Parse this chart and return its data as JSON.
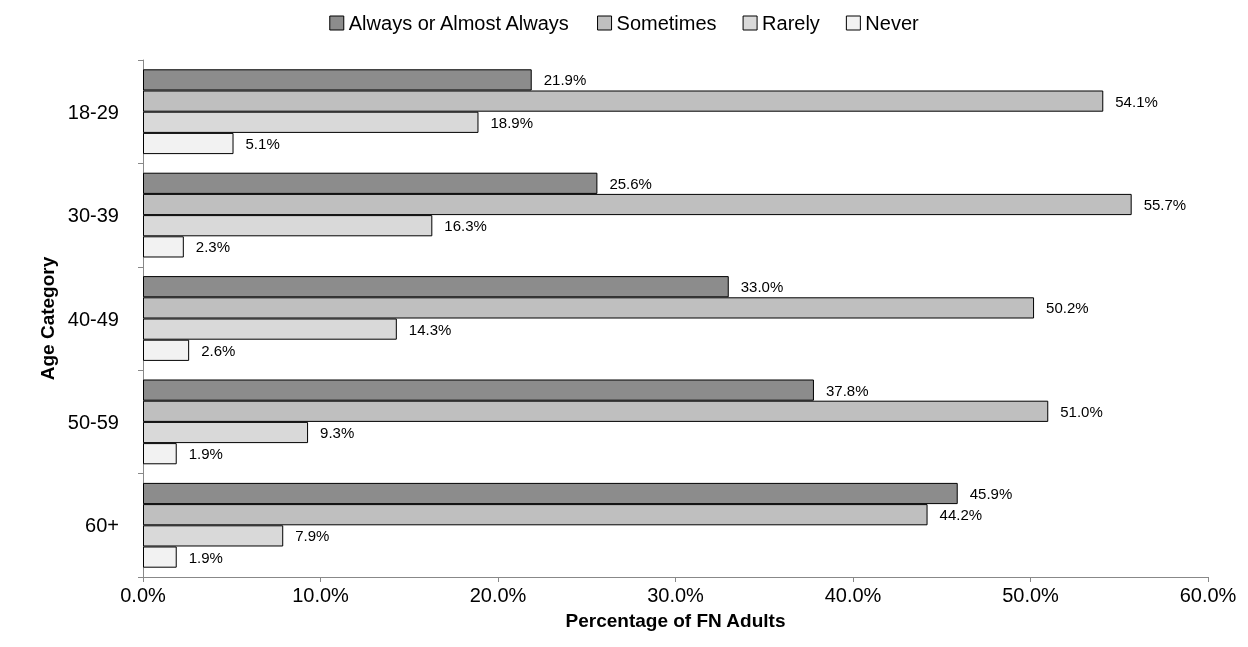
{
  "chart_data": {
    "type": "bar",
    "orientation": "horizontal",
    "xlabel": "Percentage of FN Adults",
    "ylabel": "Age Category",
    "categories": [
      "18-29",
      "30-39",
      "40-49",
      "50-59",
      "60+"
    ],
    "series": [
      {
        "name": "Always or Almost Always",
        "color": "#8c8c8c",
        "values": [
          21.9,
          25.6,
          33.0,
          37.8,
          45.9
        ],
        "value_labels": [
          "21.9%",
          "25.6%",
          "33.0%",
          "37.8%",
          "45.9%"
        ]
      },
      {
        "name": "Sometimes",
        "color": "#bfbfbf",
        "values": [
          54.1,
          55.7,
          50.2,
          51.0,
          44.2
        ],
        "value_labels": [
          "54.1%",
          "55.7%",
          "50.2%",
          "51.0%",
          "44.2%"
        ]
      },
      {
        "name": "Rarely",
        "color": "#d9d9d9",
        "values": [
          18.9,
          16.3,
          14.3,
          9.3,
          7.9
        ],
        "value_labels": [
          "18.9%",
          "16.3%",
          "14.3%",
          "9.3%",
          "7.9%"
        ]
      },
      {
        "name": "Never",
        "color": "#f2f2f2",
        "values": [
          5.1,
          2.3,
          2.6,
          1.9,
          1.9
        ],
        "value_labels": [
          "5.1%",
          "2.3%",
          "2.6%",
          "1.9%",
          "1.9%"
        ]
      }
    ],
    "xlim": [
      0,
      60
    ],
    "xticks": [
      {
        "value": 0,
        "label": "0.0%"
      },
      {
        "value": 10,
        "label": "10.0%"
      },
      {
        "value": 20,
        "label": "20.0%"
      },
      {
        "value": 30,
        "label": "30.0%"
      },
      {
        "value": 40,
        "label": "40.0%"
      },
      {
        "value": 50,
        "label": "50.0%"
      },
      {
        "value": 60,
        "label": "60.0%"
      }
    ],
    "grid": false,
    "legend": "top"
  }
}
